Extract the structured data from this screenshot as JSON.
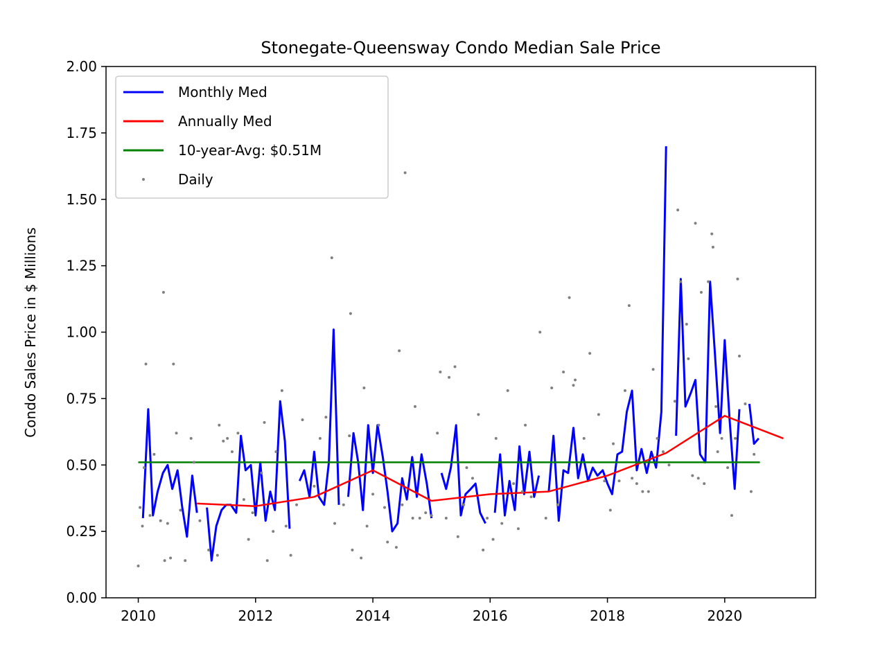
{
  "chart_data": {
    "type": "line",
    "title": "Stonegate-Queensway Condo Median Sale Price",
    "xlabel": "",
    "ylabel": "Condo Sales Price in $ Millions",
    "xlim": [
      2009.45,
      2021.55
    ],
    "ylim": [
      0,
      2
    ],
    "x_ticks": [
      2010,
      2012,
      2014,
      2016,
      2018,
      2020
    ],
    "x_tick_labels": [
      "2010",
      "2012",
      "2014",
      "2016",
      "2018",
      "2020"
    ],
    "y_ticks": [
      0,
      0.25,
      0.5,
      0.75,
      1.0,
      1.25,
      1.5,
      1.75,
      2.0
    ],
    "y_tick_labels": [
      "0.00",
      "0.25",
      "0.50",
      "0.75",
      "1.00",
      "1.25",
      "1.50",
      "1.75",
      "2.00"
    ],
    "grid": false,
    "legend_position": "top-left",
    "series": [
      {
        "name": "Monthly Med",
        "style": "line",
        "color": "#0000ff",
        "segments": [
          [
            [
              2010.08,
              0.3
            ],
            [
              2010.17,
              0.71
            ],
            [
              2010.25,
              0.31
            ],
            [
              2010.33,
              0.4
            ],
            [
              2010.42,
              0.47
            ],
            [
              2010.5,
              0.5
            ],
            [
              2010.58,
              0.41
            ],
            [
              2010.67,
              0.48
            ],
            [
              2010.75,
              0.34
            ],
            [
              2010.83,
              0.23
            ],
            [
              2010.92,
              0.46
            ],
            [
              2011.0,
              0.32
            ]
          ],
          [
            [
              2011.17,
              0.34
            ],
            [
              2011.25,
              0.14
            ],
            [
              2011.33,
              0.27
            ],
            [
              2011.42,
              0.33
            ],
            [
              2011.5,
              0.35
            ],
            [
              2011.58,
              0.35
            ],
            [
              2011.67,
              0.32
            ],
            [
              2011.75,
              0.61
            ],
            [
              2011.83,
              0.48
            ],
            [
              2011.92,
              0.5
            ],
            [
              2012.0,
              0.31
            ],
            [
              2012.08,
              0.51
            ],
            [
              2012.17,
              0.29
            ],
            [
              2012.25,
              0.4
            ],
            [
              2012.33,
              0.33
            ],
            [
              2012.42,
              0.74
            ],
            [
              2012.5,
              0.59
            ],
            [
              2012.58,
              0.26
            ]
          ],
          [
            [
              2012.75,
              0.44
            ],
            [
              2012.83,
              0.48
            ],
            [
              2012.92,
              0.38
            ],
            [
              2013.0,
              0.55
            ],
            [
              2013.08,
              0.38
            ],
            [
              2013.17,
              0.35
            ],
            [
              2013.25,
              0.51
            ],
            [
              2013.33,
              1.01
            ],
            [
              2013.42,
              0.35
            ]
          ],
          [
            [
              2013.58,
              0.38
            ],
            [
              2013.67,
              0.62
            ],
            [
              2013.75,
              0.51
            ],
            [
              2013.83,
              0.33
            ],
            [
              2013.92,
              0.65
            ],
            [
              2014.0,
              0.47
            ],
            [
              2014.08,
              0.65
            ],
            [
              2014.17,
              0.53
            ],
            [
              2014.25,
              0.4
            ],
            [
              2014.33,
              0.25
            ],
            [
              2014.42,
              0.28
            ],
            [
              2014.5,
              0.45
            ],
            [
              2014.58,
              0.37
            ],
            [
              2014.67,
              0.53
            ],
            [
              2014.75,
              0.38
            ],
            [
              2014.83,
              0.54
            ],
            [
              2014.92,
              0.43
            ],
            [
              2015.0,
              0.3
            ]
          ],
          [
            [
              2015.17,
              0.47
            ],
            [
              2015.25,
              0.41
            ],
            [
              2015.33,
              0.49
            ],
            [
              2015.42,
              0.65
            ],
            [
              2015.5,
              0.31
            ],
            [
              2015.58,
              0.39
            ],
            [
              2015.67,
              0.41
            ],
            [
              2015.75,
              0.43
            ],
            [
              2015.83,
              0.32
            ],
            [
              2015.92,
              0.28
            ]
          ],
          [
            [
              2016.08,
              0.32
            ],
            [
              2016.17,
              0.54
            ],
            [
              2016.25,
              0.31
            ],
            [
              2016.33,
              0.44
            ],
            [
              2016.42,
              0.33
            ],
            [
              2016.5,
              0.57
            ],
            [
              2016.58,
              0.39
            ],
            [
              2016.67,
              0.55
            ],
            [
              2016.75,
              0.38
            ],
            [
              2016.83,
              0.46
            ]
          ],
          [
            [
              2017.0,
              0.4
            ],
            [
              2017.08,
              0.61
            ],
            [
              2017.17,
              0.29
            ],
            [
              2017.25,
              0.48
            ],
            [
              2017.33,
              0.47
            ],
            [
              2017.42,
              0.64
            ],
            [
              2017.5,
              0.45
            ],
            [
              2017.58,
              0.54
            ],
            [
              2017.67,
              0.44
            ],
            [
              2017.75,
              0.49
            ],
            [
              2017.83,
              0.46
            ],
            [
              2017.92,
              0.48
            ],
            [
              2018.0,
              0.43
            ],
            [
              2018.08,
              0.39
            ],
            [
              2018.17,
              0.54
            ],
            [
              2018.25,
              0.55
            ],
            [
              2018.33,
              0.7
            ],
            [
              2018.42,
              0.78
            ],
            [
              2018.5,
              0.48
            ],
            [
              2018.58,
              0.56
            ],
            [
              2018.67,
              0.47
            ],
            [
              2018.75,
              0.55
            ],
            [
              2018.83,
              0.49
            ],
            [
              2018.92,
              0.7
            ],
            [
              2019.0,
              1.7
            ]
          ],
          [
            [
              2019.17,
              0.61
            ],
            [
              2019.25,
              1.2
            ],
            [
              2019.33,
              0.72
            ],
            [
              2019.42,
              0.77
            ],
            [
              2019.5,
              0.82
            ],
            [
              2019.58,
              0.54
            ],
            [
              2019.67,
              0.51
            ],
            [
              2019.75,
              1.19
            ],
            [
              2019.83,
              0.93
            ],
            [
              2019.92,
              0.62
            ],
            [
              2020.0,
              0.97
            ],
            [
              2020.08,
              0.68
            ],
            [
              2020.17,
              0.41
            ],
            [
              2020.25,
              0.71
            ]
          ],
          [
            [
              2020.42,
              0.73
            ],
            [
              2020.5,
              0.58
            ],
            [
              2020.58,
              0.6
            ]
          ]
        ]
      },
      {
        "name": "Annually Med",
        "style": "line",
        "color": "#ff0000",
        "points": [
          [
            2011,
            0.355
          ],
          [
            2012,
            0.345
          ],
          [
            2013,
            0.38
          ],
          [
            2014,
            0.48
          ],
          [
            2015,
            0.365
          ],
          [
            2016,
            0.39
          ],
          [
            2017,
            0.4
          ],
          [
            2018,
            0.46
          ],
          [
            2019,
            0.545
          ],
          [
            2020,
            0.685
          ],
          [
            2021,
            0.6
          ]
        ]
      },
      {
        "name": "10-year-Avg: $0.51M",
        "style": "line",
        "color": "#008000",
        "points": [
          [
            2010,
            0.51
          ],
          [
            2020.6,
            0.51
          ]
        ]
      },
      {
        "name": "Daily",
        "style": "scatter",
        "color": "#808080",
        "points": [
          [
            2010.0,
            0.12
          ],
          [
            2010.03,
            0.34
          ],
          [
            2010.07,
            0.27
          ],
          [
            2010.1,
            0.49
          ],
          [
            2010.13,
            0.88
          ],
          [
            2010.2,
            0.31
          ],
          [
            2010.27,
            0.54
          ],
          [
            2010.38,
            0.29
          ],
          [
            2010.43,
            1.15
          ],
          [
            2010.45,
            0.14
          ],
          [
            2010.5,
            0.28
          ],
          [
            2010.55,
            0.15
          ],
          [
            2010.6,
            0.88
          ],
          [
            2010.65,
            0.62
          ],
          [
            2010.72,
            0.33
          ],
          [
            2010.8,
            0.14
          ],
          [
            2010.9,
            0.6
          ],
          [
            2010.95,
            0.51
          ],
          [
            2011.05,
            0.29
          ],
          [
            2011.2,
            0.18
          ],
          [
            2011.35,
            0.16
          ],
          [
            2011.38,
            0.65
          ],
          [
            2011.45,
            0.59
          ],
          [
            2011.52,
            0.6
          ],
          [
            2011.6,
            0.55
          ],
          [
            2011.7,
            0.62
          ],
          [
            2011.8,
            0.37
          ],
          [
            2011.88,
            0.22
          ],
          [
            2011.95,
            0.32
          ],
          [
            2012.1,
            0.47
          ],
          [
            2012.15,
            0.66
          ],
          [
            2012.2,
            0.14
          ],
          [
            2012.3,
            0.25
          ],
          [
            2012.35,
            0.55
          ],
          [
            2012.45,
            0.78
          ],
          [
            2012.52,
            0.27
          ],
          [
            2012.6,
            0.16
          ],
          [
            2012.7,
            0.35
          ],
          [
            2012.8,
            0.67
          ],
          [
            2013.0,
            0.42
          ],
          [
            2013.1,
            0.6
          ],
          [
            2013.2,
            0.68
          ],
          [
            2013.3,
            1.28
          ],
          [
            2013.35,
            0.28
          ],
          [
            2013.5,
            0.35
          ],
          [
            2013.6,
            0.61
          ],
          [
            2013.62,
            1.07
          ],
          [
            2013.65,
            0.18
          ],
          [
            2013.8,
            0.15
          ],
          [
            2013.85,
            0.79
          ],
          [
            2013.9,
            0.27
          ],
          [
            2014.0,
            0.39
          ],
          [
            2014.1,
            0.65
          ],
          [
            2014.2,
            0.34
          ],
          [
            2014.25,
            0.21
          ],
          [
            2014.4,
            0.19
          ],
          [
            2014.45,
            0.93
          ],
          [
            2014.5,
            0.35
          ],
          [
            2014.55,
            1.6
          ],
          [
            2014.68,
            0.3
          ],
          [
            2014.72,
            0.72
          ],
          [
            2014.8,
            0.3
          ],
          [
            2014.9,
            0.32
          ],
          [
            2015.0,
            0.31
          ],
          [
            2015.1,
            0.62
          ],
          [
            2015.15,
            0.85
          ],
          [
            2015.25,
            0.3
          ],
          [
            2015.3,
            0.83
          ],
          [
            2015.4,
            0.87
          ],
          [
            2015.45,
            0.23
          ],
          [
            2015.55,
            0.35
          ],
          [
            2015.6,
            0.49
          ],
          [
            2015.7,
            0.45
          ],
          [
            2015.8,
            0.69
          ],
          [
            2015.88,
            0.18
          ],
          [
            2015.95,
            0.3
          ],
          [
            2016.05,
            0.22
          ],
          [
            2016.1,
            0.6
          ],
          [
            2016.2,
            0.28
          ],
          [
            2016.3,
            0.78
          ],
          [
            2016.4,
            0.43
          ],
          [
            2016.48,
            0.26
          ],
          [
            2016.55,
            0.4
          ],
          [
            2016.6,
            0.65
          ],
          [
            2016.7,
            0.38
          ],
          [
            2016.85,
            1.0
          ],
          [
            2016.95,
            0.3
          ],
          [
            2017.05,
            0.79
          ],
          [
            2017.15,
            0.35
          ],
          [
            2017.25,
            0.85
          ],
          [
            2017.35,
            1.13
          ],
          [
            2017.42,
            0.8
          ],
          [
            2017.45,
            0.82
          ],
          [
            2017.6,
            0.6
          ],
          [
            2017.7,
            0.92
          ],
          [
            2017.85,
            0.69
          ],
          [
            2017.95,
            0.44
          ],
          [
            2018.05,
            0.33
          ],
          [
            2018.1,
            0.58
          ],
          [
            2018.2,
            0.44
          ],
          [
            2018.3,
            0.78
          ],
          [
            2018.37,
            1.1
          ],
          [
            2018.42,
            0.45
          ],
          [
            2018.5,
            0.43
          ],
          [
            2018.6,
            0.4
          ],
          [
            2018.7,
            0.4
          ],
          [
            2018.78,
            0.86
          ],
          [
            2018.85,
            0.6
          ],
          [
            2018.95,
            0.55
          ],
          [
            2019.05,
            0.5
          ],
          [
            2019.15,
            0.74
          ],
          [
            2019.2,
            1.46
          ],
          [
            2019.25,
            1.19
          ],
          [
            2019.35,
            1.03
          ],
          [
            2019.38,
            0.9
          ],
          [
            2019.45,
            0.46
          ],
          [
            2019.5,
            1.41
          ],
          [
            2019.55,
            0.45
          ],
          [
            2019.6,
            1.15
          ],
          [
            2019.65,
            0.43
          ],
          [
            2019.72,
            1.19
          ],
          [
            2019.78,
            1.37
          ],
          [
            2019.8,
            1.32
          ],
          [
            2019.85,
            0.72
          ],
          [
            2019.88,
            0.55
          ],
          [
            2019.95,
            0.6
          ],
          [
            2020.05,
            0.49
          ],
          [
            2020.12,
            0.31
          ],
          [
            2020.18,
            0.6
          ],
          [
            2020.22,
            1.2
          ],
          [
            2020.25,
            0.91
          ],
          [
            2020.35,
            0.73
          ],
          [
            2020.45,
            0.4
          ],
          [
            2020.5,
            0.54
          ]
        ]
      }
    ]
  },
  "legend": {
    "items": [
      {
        "label": "Monthly Med",
        "color": "#0000ff",
        "marker": "line"
      },
      {
        "label": "Annually Med",
        "color": "#ff0000",
        "marker": "line"
      },
      {
        "label": "10-year-Avg: $0.51M",
        "color": "#008000",
        "marker": "line"
      },
      {
        "label": "Daily",
        "color": "#808080",
        "marker": "dot"
      }
    ]
  }
}
